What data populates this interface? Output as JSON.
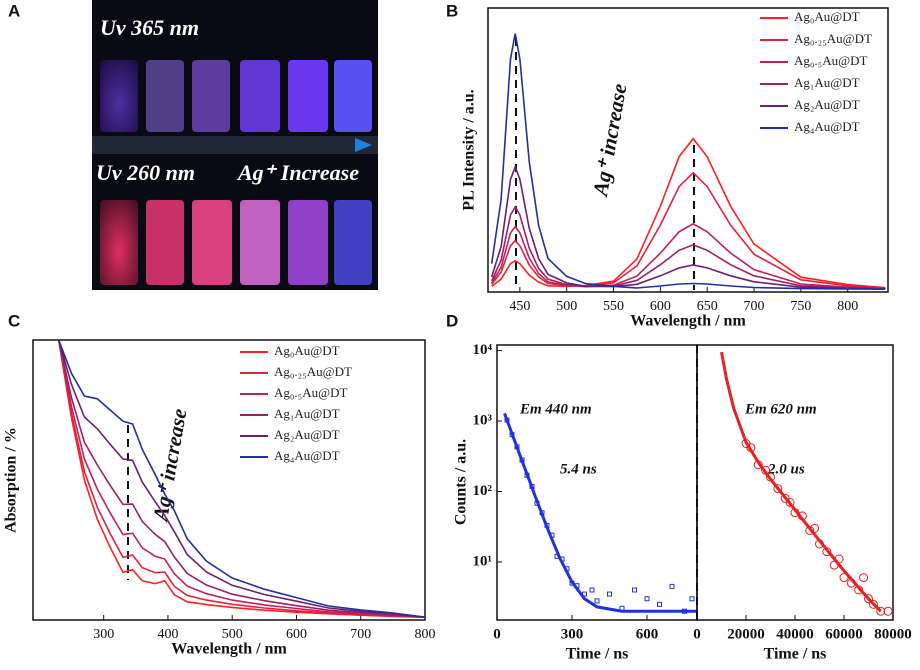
{
  "panel_labels": [
    "A",
    "B",
    "C",
    "D"
  ],
  "photo": {
    "texts": [
      "Uv 365 nm",
      "Uv 260 nm",
      "Ag⁺ Increase"
    ]
  },
  "chart_data": [
    {
      "type": "line",
      "xlabel": "Wavelength / nm",
      "ylabel": "PL Intensity / a.u.",
      "annotations": [
        "Ag⁺ increase"
      ],
      "x": [
        420,
        430,
        440,
        445,
        450,
        460,
        470,
        480,
        500,
        520,
        550,
        575,
        600,
        620,
        635,
        650,
        675,
        700,
        750,
        800,
        840
      ],
      "xlim": [
        416,
        843
      ],
      "xticks": [
        450,
        500,
        550,
        600,
        650,
        700,
        750,
        800
      ],
      "ylim": [
        0,
        100
      ],
      "legend": "upper right",
      "series": [
        {
          "name": "Ag₀Au@DT",
          "color": "#ff2020",
          "values": [
            2,
            4.5,
            10,
            11,
            10,
            6,
            3.5,
            2.2,
            2.0,
            2.3,
            3.8,
            11.6,
            30.2,
            47.6,
            54,
            47.6,
            30.2,
            16.9,
            5.2,
            2.6,
            1.5
          ]
        },
        {
          "name": "Ag₀.₂₅Au@DT",
          "color": "#e42040",
          "values": [
            2.7,
            7,
            16.3,
            18,
            16.3,
            9.5,
            5.3,
            3,
            2.3,
            2.2,
            3.2,
            9.2,
            23.6,
            37.1,
            42,
            37.1,
            23.6,
            13.3,
            4.3,
            2.2,
            1.4
          ]
        },
        {
          "name": "Ag₀.₅Au@DT",
          "color": "#c42056",
          "values": [
            3.2,
            8.7,
            20.8,
            23,
            20.8,
            12,
            6.5,
            3.6,
            2.3,
            1.9,
            2.4,
            5.6,
            13.7,
            21.2,
            24,
            21.2,
            13.7,
            7.9,
            2.8,
            1.7,
            1.2
          ]
        },
        {
          "name": "Ag₁Au@DT",
          "color": "#9c2064",
          "values": [
            3.9,
            11.2,
            27.1,
            30,
            27.1,
            15.5,
            8.3,
            4.5,
            2.6,
            1.9,
            2.1,
            4.1,
            9.6,
            14.7,
            16.6,
            14.7,
            9.6,
            5.7,
            2.2,
            1.5,
            1.2
          ]
        },
        {
          "name": "Ag₂Au@DT",
          "color": "#6a2070",
          "values": [
            5.3,
            16,
            39.7,
            44,
            39.7,
            22.5,
            11.8,
            6.2,
            3.2,
            2,
            1.9,
            2.7,
            5.7,
            8.5,
            9.5,
            8.5,
            5.7,
            3.6,
            1.7,
            1.3,
            1.1
          ]
        },
        {
          "name": "Ag₄Au@DT",
          "color": "#2030a0",
          "values": [
            10,
            32.5,
            82,
            91,
            82,
            46,
            23.5,
            11.8,
            5.5,
            3,
            2,
            1.4,
            2.1,
            2.8,
            3,
            2.8,
            2.1,
            1.6,
            1.2,
            1.1,
            1
          ]
        }
      ]
    },
    {
      "type": "line",
      "xlabel": "Wavelength / nm",
      "ylabel": "Absorption / %",
      "annotations": [
        "Ag⁺ increase"
      ],
      "x": [
        230,
        250,
        270,
        290,
        310,
        330,
        345,
        360,
        380,
        395,
        410,
        430,
        460,
        500,
        550,
        600,
        650,
        700,
        750,
        800
      ],
      "xlim": [
        190,
        800
      ],
      "xticks": [
        300,
        400,
        500,
        600,
        700,
        800
      ],
      "ylim": [
        0,
        100
      ],
      "legend": "upper right",
      "series": [
        {
          "name": "Ag₀Au@DT",
          "color": "#ff2020",
          "values": [
            100,
            72,
            50,
            36,
            26,
            17,
            18,
            14,
            13,
            14,
            9,
            6.5,
            5.5,
            4.5,
            3.5,
            2.8,
            2.2,
            1.7,
            1.3,
            1
          ]
        },
        {
          "name": "Ag₀.₂₅Au@DT",
          "color": "#e42040",
          "values": [
            100,
            73.6,
            53,
            40.3,
            30.9,
            22.4,
            23.2,
            18.7,
            16.9,
            17.1,
            12,
            8.8,
            7.1,
            5.6,
            4.3,
            3.3,
            2.5,
            1.9,
            1.4,
            1
          ]
        },
        {
          "name": "Ag₀.₅Au@DT",
          "color": "#c42056",
          "values": [
            100,
            76,
            57.5,
            46.8,
            38.3,
            30.5,
            31,
            25.8,
            22.8,
            21.8,
            16.5,
            12.1,
            9.4,
            7.1,
            5.4,
            4.1,
            2.9,
            2.2,
            1.6,
            1
          ]
        },
        {
          "name": "Ag₁Au@DT",
          "color": "#9c2064",
          "values": [
            100,
            79.2,
            63.5,
            55.4,
            48.1,
            41.3,
            41.4,
            35.2,
            30.6,
            28,
            22.5,
            16.6,
            12.5,
            9.2,
            6.9,
            5.1,
            3.5,
            2.6,
            1.8,
            1
          ]
        },
        {
          "name": "Ag₂Au@DT",
          "color": "#6a2070",
          "values": [
            100,
            84,
            72.5,
            68.3,
            62.8,
            57.5,
            57,
            49.3,
            42.3,
            37.3,
            31.5,
            23.4,
            17.1,
            12.4,
            9.1,
            6.7,
            4.3,
            3.1,
            2.2,
            1
          ]
        },
        {
          "name": "Ag₄Au@DT",
          "color": "#2030a0",
          "values": [
            100,
            88,
            80,
            79,
            75,
            71,
            70,
            61,
            52,
            45,
            39,
            29,
            21,
            15,
            11,
            8,
            5,
            3.6,
            2.5,
            1
          ]
        }
      ]
    },
    {
      "type": "scatter",
      "xlabel": "Time / ns",
      "ylabel": "Counts / a.u.",
      "annotations": [
        "Em 440 nm",
        "5.4 ns"
      ],
      "log_y": true,
      "color": "#2030e0",
      "marker": "square",
      "xlim": [
        0,
        800
      ],
      "xticks": [
        0,
        300,
        600
      ],
      "ylim": [
        1.5,
        12000
      ],
      "yticks": [
        {
          "value": 10,
          "label": "10¹"
        },
        {
          "value": 100,
          "label": "10²"
        },
        {
          "value": 1000,
          "label": "10³"
        },
        {
          "value": 10000,
          "label": "10⁴"
        }
      ],
      "x": [
        40,
        60,
        80,
        100,
        120,
        140,
        160,
        180,
        200,
        220,
        240,
        260,
        280,
        300,
        320,
        350,
        380,
        400,
        450,
        500,
        550,
        600,
        650,
        700,
        750,
        780
      ],
      "values": [
        1030,
        640,
        430,
        280,
        170,
        118,
        68,
        50,
        33,
        24,
        12,
        11,
        8,
        5,
        4.6,
        3.5,
        4,
        2.8,
        3.5,
        2.2,
        4,
        3,
        2.5,
        4.5,
        2,
        3
      ],
      "fit": {
        "x": [
          30,
          50,
          75,
          100,
          125,
          150,
          175,
          200,
          250,
          300,
          350,
          400,
          500,
          600,
          700,
          800
        ],
        "values": [
          1285,
          825,
          474,
          273,
          158,
          91,
          53,
          31,
          11.6,
          5.2,
          3.0,
          2.3,
          2,
          2,
          2,
          2
        ]
      }
    },
    {
      "type": "scatter",
      "xlabel": "Time / ns",
      "annotations": [
        "Em 620 nm",
        "2.0 us"
      ],
      "log_y": true,
      "color": "#e82020",
      "marker": "circle",
      "xlim": [
        0,
        80000
      ],
      "xticks": [
        0,
        20000,
        40000,
        60000,
        80000
      ],
      "ylim": [
        1.5,
        12000
      ],
      "x": [
        20000,
        22000,
        25000,
        28000,
        30000,
        33000,
        36000,
        38000,
        40000,
        43000,
        46000,
        48000,
        50000,
        53000,
        56000,
        58000,
        60000,
        63000,
        66000,
        68000,
        70000,
        72000,
        75000,
        78000
      ],
      "values": [
        480,
        420,
        240,
        200,
        160,
        110,
        80,
        70,
        50,
        45,
        28,
        30,
        18,
        14,
        9,
        11,
        6,
        5,
        4,
        6,
        3,
        2.5,
        2,
        2
      ],
      "fit": {
        "x": [
          10000,
          12000,
          15000,
          20000,
          25000,
          30000,
          40000,
          50000,
          60000,
          70000,
          75000
        ],
        "values": [
          9500,
          4000,
          1500,
          500,
          260,
          150,
          55,
          20,
          7.5,
          3,
          2
        ]
      }
    }
  ]
}
